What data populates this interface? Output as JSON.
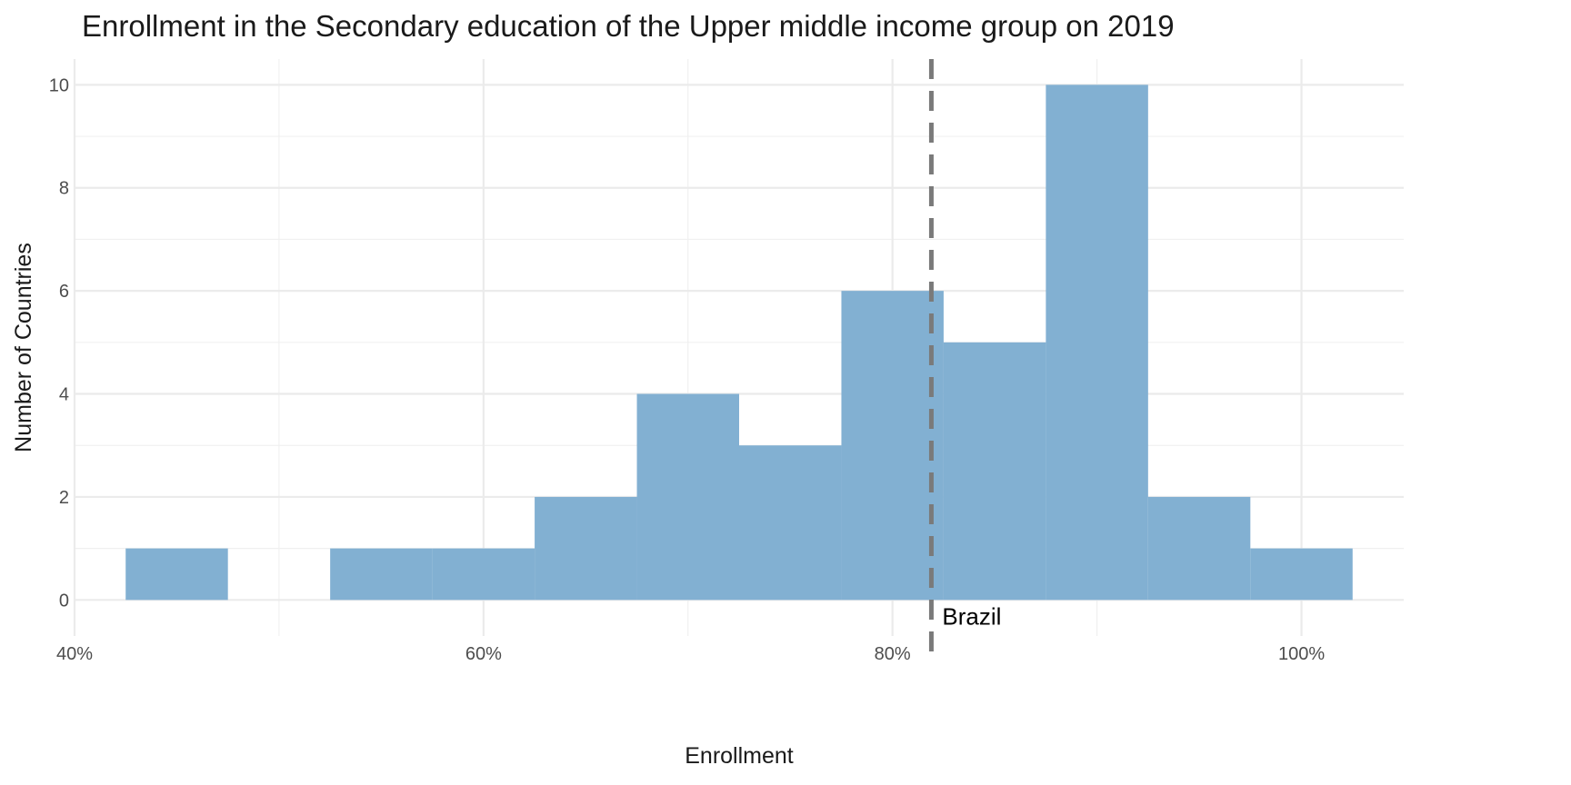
{
  "chart_data": {
    "type": "bar",
    "title": "Enrollment in the Secondary education of the Upper middle income group on 2019",
    "xlabel": "Enrollment",
    "ylabel": "Number of Countries",
    "bin_width": 5,
    "bins": [
      {
        "x0": 42.5,
        "x1": 47.5,
        "count": 1
      },
      {
        "x0": 47.5,
        "x1": 52.5,
        "count": 0
      },
      {
        "x0": 52.5,
        "x1": 57.5,
        "count": 1
      },
      {
        "x0": 57.5,
        "x1": 62.5,
        "count": 1
      },
      {
        "x0": 62.5,
        "x1": 67.5,
        "count": 2
      },
      {
        "x0": 67.5,
        "x1": 72.5,
        "count": 4
      },
      {
        "x0": 72.5,
        "x1": 77.5,
        "count": 3
      },
      {
        "x0": 77.5,
        "x1": 82.5,
        "count": 6
      },
      {
        "x0": 82.5,
        "x1": 87.5,
        "count": 5
      },
      {
        "x0": 87.5,
        "x1": 92.5,
        "count": 10
      },
      {
        "x0": 92.5,
        "x1": 97.5,
        "count": 2
      },
      {
        "x0": 97.5,
        "x1": 102.5,
        "count": 1
      }
    ],
    "xlim": [
      40,
      105
    ],
    "ylim": [
      -0.7,
      10.5
    ],
    "x_ticks": [
      40,
      60,
      80,
      100
    ],
    "x_tick_labels": [
      "40%",
      "60%",
      "80%",
      "100%"
    ],
    "y_ticks": [
      0,
      2,
      4,
      6,
      8,
      10
    ],
    "y_tick_labels": [
      "0",
      "2",
      "4",
      "6",
      "8",
      "10"
    ],
    "reference_line": {
      "x": 81.9,
      "label": "Brazil",
      "style": "dashed",
      "color": "#7a7a7a"
    },
    "bar_color": "#82b0d2",
    "grid": true,
    "legend": "none"
  }
}
